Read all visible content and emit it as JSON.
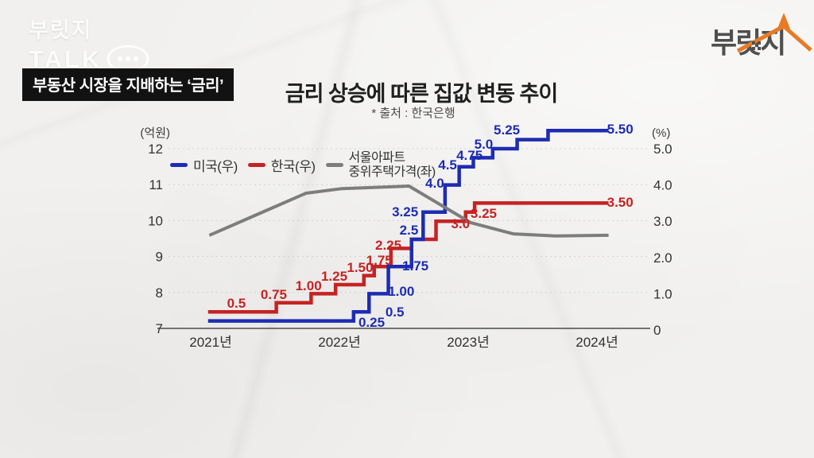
{
  "branding": {
    "channel_line1": "부릿지",
    "channel_line2": "TALK",
    "badge_title": "부동산 시장을 지배하는 ‘금리’",
    "logo_text": "부릿지",
    "logo_gray": "#4f4f4f",
    "logo_orange": "#e87a25"
  },
  "chart_data": {
    "type": "line",
    "title": "금리 상승에 따른 집값 변동 추이",
    "source": "* 출처 : 한국은행",
    "grid": "faint-dashed-horizontal",
    "legend_position": "top-left-inside",
    "x_axis": {
      "ticks": [
        {
          "label": "2021년",
          "year": 2021
        },
        {
          "label": "2022년",
          "year": 2022
        },
        {
          "label": "2023년",
          "year": 2023
        },
        {
          "label": "2024년",
          "year": 2024
        }
      ]
    },
    "left_axis": {
      "unit": "(억원)",
      "ticks": [
        12,
        11,
        10,
        9,
        8,
        7
      ],
      "range": [
        7,
        12
      ]
    },
    "right_axis": {
      "unit": "(%)",
      "ticks": [
        "5.0",
        "4.0",
        "3.0",
        "2.0",
        "1.0",
        "0"
      ],
      "range": [
        0,
        5.5
      ]
    },
    "series": [
      {
        "name": "한국(우)",
        "axis": "right",
        "type": "step",
        "color": "#c52323",
        "steps": [
          [
            2020.98,
            0.5
          ],
          [
            2021.51,
            0.75
          ],
          [
            2021.78,
            1.0
          ],
          [
            2021.97,
            1.25
          ],
          [
            2022.19,
            1.5
          ],
          [
            2022.27,
            1.75
          ],
          [
            2022.4,
            2.25
          ],
          [
            2022.56,
            2.5
          ],
          [
            2022.75,
            3.0
          ],
          [
            2022.98,
            3.25
          ],
          [
            2023.05,
            3.5
          ]
        ],
        "x_end": 2024.09,
        "labels": [
          {
            "text": "0.5",
            "x": 2021.2,
            "y": 0.75
          },
          {
            "text": "0.75",
            "x": 2021.49,
            "y": 0.99
          },
          {
            "text": "1.00",
            "x": 2021.76,
            "y": 1.23
          },
          {
            "text": "1.25",
            "x": 2021.96,
            "y": 1.49
          },
          {
            "text": "1.50",
            "x": 2022.16,
            "y": 1.73
          },
          {
            "text": "1.75",
            "x": 2022.31,
            "y": 1.93
          },
          {
            "text": "2.25",
            "x": 2022.38,
            "y": 2.35
          },
          {
            "text": "3.0",
            "x": 2022.94,
            "y": 2.94
          },
          {
            "text": "3.25",
            "x": 2023.12,
            "y": 3.22
          },
          {
            "text": "3.50",
            "x": 2024.18,
            "y": 3.53
          }
        ]
      },
      {
        "name": "미국(우)",
        "axis": "right",
        "type": "step",
        "color": "#1d2cb2",
        "steps": [
          [
            2020.98,
            0.25
          ],
          [
            2022.11,
            0.5
          ],
          [
            2022.23,
            1.0
          ],
          [
            2022.38,
            1.75
          ],
          [
            2022.56,
            2.5
          ],
          [
            2022.65,
            3.25
          ],
          [
            2022.82,
            4.0
          ],
          [
            2022.93,
            4.5
          ],
          [
            2023.04,
            4.75
          ],
          [
            2023.19,
            5.0
          ],
          [
            2023.38,
            5.25
          ],
          [
            2023.62,
            5.5
          ]
        ],
        "x_end": 2024.09,
        "labels": [
          {
            "text": "0.25",
            "x": 2022.25,
            "y": 0.22
          },
          {
            "text": "0.5",
            "x": 2022.43,
            "y": 0.5
          },
          {
            "text": "1.00",
            "x": 2022.48,
            "y": 1.07
          },
          {
            "text": "1.75",
            "x": 2022.59,
            "y": 1.78
          },
          {
            "text": "2.5",
            "x": 2022.54,
            "y": 2.76
          },
          {
            "text": "3.25",
            "x": 2022.51,
            "y": 3.27
          },
          {
            "text": "4.0",
            "x": 2022.74,
            "y": 4.06
          },
          {
            "text": "4.5",
            "x": 2022.84,
            "y": 4.56
          },
          {
            "text": "4.75",
            "x": 2023.01,
            "y": 4.82
          },
          {
            "text": "5.0",
            "x": 2023.12,
            "y": 5.13
          },
          {
            "text": "5.25",
            "x": 2023.3,
            "y": 5.53
          },
          {
            "text": "5.50",
            "x": 2024.18,
            "y": 5.55
          }
        ]
      },
      {
        "name": "서울아파트\n중위주택가격(좌)",
        "axis": "left",
        "type": "line",
        "color": "#7d7d7d",
        "points": [
          [
            2020.99,
            9.59
          ],
          [
            2021.4,
            10.23
          ],
          [
            2021.74,
            10.76
          ],
          [
            2022.02,
            10.89
          ],
          [
            2022.54,
            10.96
          ],
          [
            2023.02,
            9.94
          ],
          [
            2023.35,
            9.63
          ],
          [
            2023.68,
            9.57
          ],
          [
            2024.09,
            9.59
          ]
        ],
        "labels": []
      }
    ]
  }
}
